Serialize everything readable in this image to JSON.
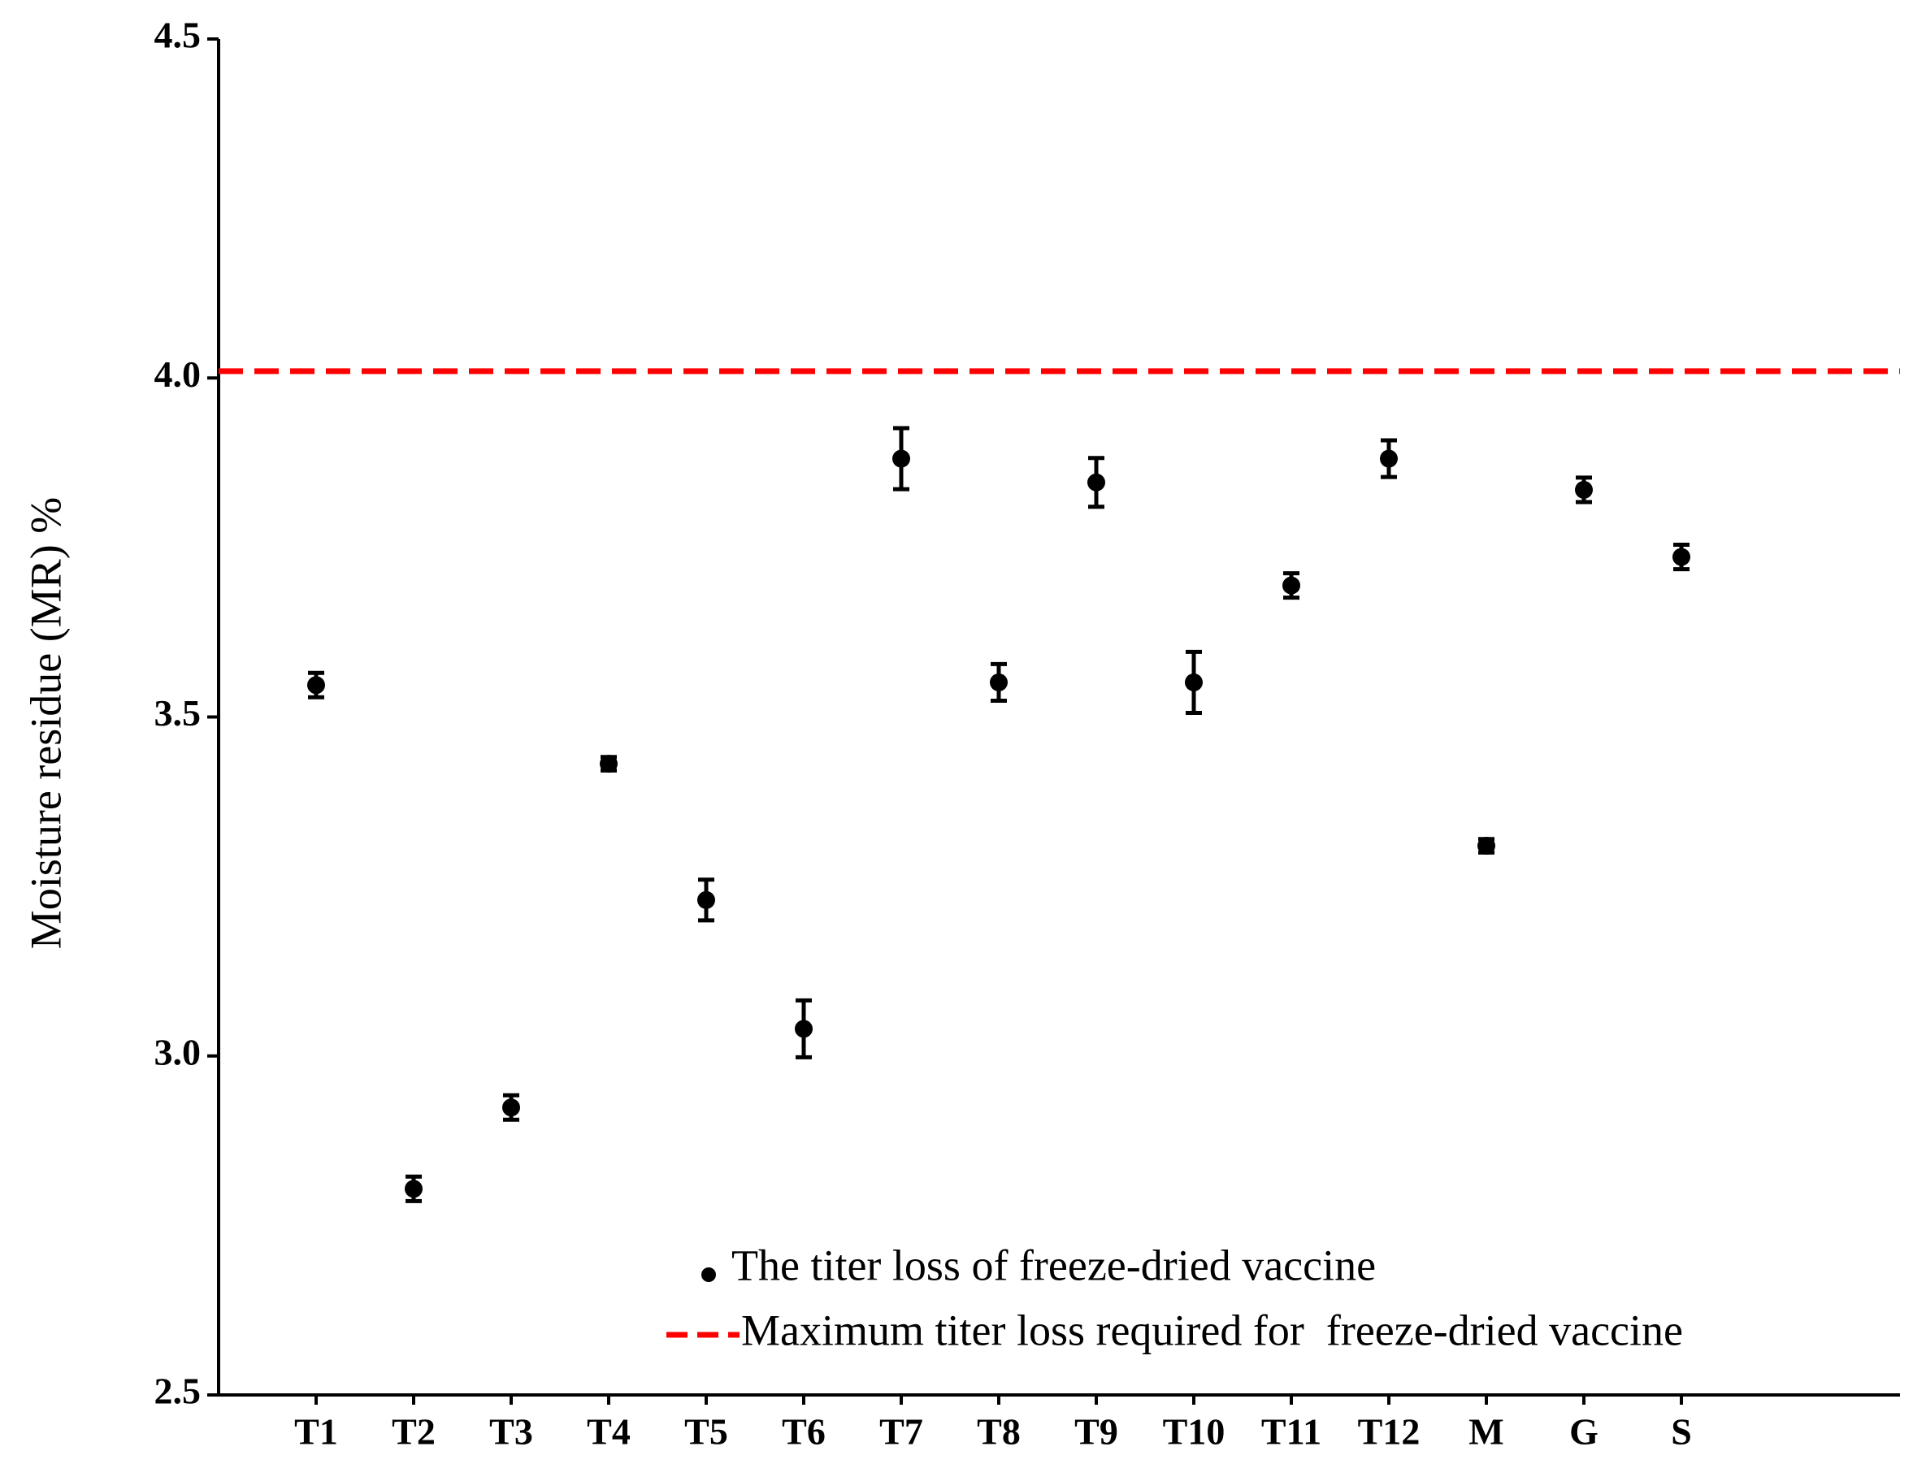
{
  "chart_data": {
    "type": "scatter",
    "y_label": "Moisture residue (MR) %",
    "categories": [
      "T1",
      "T2",
      "T3",
      "T4",
      "T5",
      "T6",
      "T7",
      "T8",
      "T9",
      "T10",
      "T11",
      "T12",
      "M",
      "G",
      "S"
    ],
    "series": [
      {
        "name": "The titer loss of freeze-dried vaccine",
        "color": "#000000",
        "values": [
          3.547,
          2.804,
          2.924,
          3.431,
          3.23,
          3.04,
          3.881,
          3.551,
          3.846,
          3.551,
          3.694,
          3.881,
          3.31,
          3.835,
          3.736
        ],
        "errors": [
          0.018,
          0.018,
          0.018,
          0.01,
          0.03,
          0.042,
          0.045,
          0.027,
          0.036,
          0.045,
          0.018,
          0.027,
          0.01,
          0.018,
          0.018
        ]
      }
    ],
    "reference_line": {
      "name": "Maximum titer loss required for  freeze-dried vaccine",
      "value": 4.01,
      "color": "#ff0000"
    },
    "ylim": [
      2.5,
      4.5
    ],
    "yticks": [
      2.5,
      {
        "value": 3,
        "label": "3.0"
      },
      3.5,
      {
        "value": 4,
        "label": "4.0"
      },
      4.5
    ],
    "legend": "lower right"
  }
}
